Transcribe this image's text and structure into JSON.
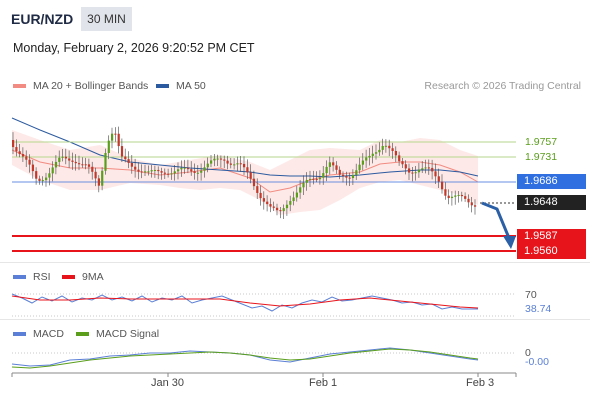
{
  "header": {
    "pair": "EUR/NZD",
    "timeframe": "30 MIN",
    "datetime": "Monday, February 2, 2026 9:20:52 PM CET"
  },
  "legend_main": [
    {
      "label": "MA 20 + Bollinger Bands",
      "color": "#f28b82"
    },
    {
      "label": "MA 50",
      "color": "#2c5aa0"
    }
  ],
  "credit": "Research © 2026 Trading Central",
  "price_levels": [
    {
      "value": "1.9757",
      "kind": "resistance",
      "color": "#5a9e1c"
    },
    {
      "value": "1.9731",
      "kind": "resistance",
      "color": "#5a9e1c"
    },
    {
      "value": "1.9686",
      "kind": "pivot",
      "color": "#2f6fe0"
    },
    {
      "value": "1.9648",
      "kind": "last",
      "color": "#222222"
    },
    {
      "value": "1.9587",
      "kind": "support",
      "color": "#e8141b"
    },
    {
      "value": "1.9560",
      "kind": "support",
      "color": "#e8141b"
    }
  ],
  "rsi": {
    "legend": [
      {
        "label": "RSI",
        "color": "#5b7fd6"
      },
      {
        "label": "9MA",
        "color": "#e8141b"
      }
    ],
    "level_label": "70",
    "value": "38.74"
  },
  "macd": {
    "legend": [
      {
        "label": "MACD",
        "color": "#5b7fd6"
      },
      {
        "label": "MACD Signal",
        "color": "#5a9e1c"
      }
    ],
    "zero_label": "0",
    "value": "-0.00"
  },
  "x_axis": [
    "Jan 30",
    "Feb 1",
    "Feb 3"
  ],
  "chart_data": {
    "type": "candlestick",
    "instrument": "EUR/NZD",
    "interval": "30 MIN",
    "y_labels": [
      1.9757,
      1.9731,
      1.9686,
      1.9648,
      1.9587,
      1.956
    ],
    "last_price": 1.9648,
    "forecast": "down toward 1.9587",
    "x_ticks": [
      "Jan 30",
      "Feb 1",
      "Feb 3"
    ],
    "rsi_last": 38.74,
    "macd_last": -0.0
  }
}
